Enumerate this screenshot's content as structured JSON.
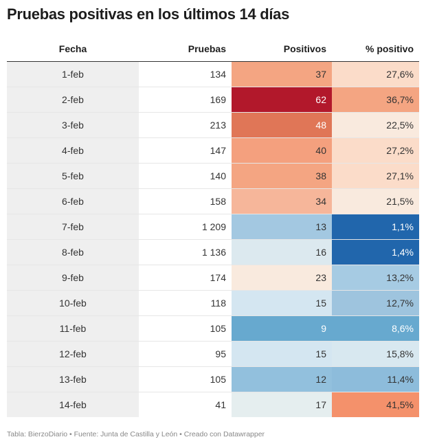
{
  "title": "Pruebas positivas en los últimos 14 días",
  "footer": "Tabla: BierzoDiario • Fuente: Junta de Castilla y León • Creado con Datawrapper",
  "chart_data": {
    "type": "table",
    "columns": [
      "Fecha",
      "Pruebas",
      "Positivos",
      "% positivo"
    ],
    "rows": [
      {
        "fecha": "1-feb",
        "pruebas": "134",
        "positivos": "37",
        "pct": "27,6%",
        "pos_color": "#f4a582",
        "pct_color": "#fbdcc9",
        "pos_text": "#333333",
        "pct_text": "#333333"
      },
      {
        "fecha": "2-feb",
        "pruebas": "169",
        "positivos": "62",
        "pct": "36,7%",
        "pos_color": "#b2182b",
        "pct_color": "#f4a582",
        "pos_text": "#ffffff",
        "pct_text": "#333333"
      },
      {
        "fecha": "3-feb",
        "pruebas": "213",
        "positivos": "48",
        "pct": "22,5%",
        "pos_color": "#e07657",
        "pct_color": "#f9eade",
        "pos_text": "#ffffff",
        "pct_text": "#333333"
      },
      {
        "fecha": "4-feb",
        "pruebas": "147",
        "positivos": "40",
        "pct": "27,2%",
        "pos_color": "#f4a07e",
        "pct_color": "#fbdcc9",
        "pos_text": "#333333",
        "pct_text": "#333333"
      },
      {
        "fecha": "5-feb",
        "pruebas": "140",
        "positivos": "38",
        "pct": "27,1%",
        "pos_color": "#f4a582",
        "pct_color": "#fbdcc9",
        "pos_text": "#333333",
        "pct_text": "#333333"
      },
      {
        "fecha": "6-feb",
        "pruebas": "158",
        "positivos": "34",
        "pct": "21,5%",
        "pos_color": "#f6b69a",
        "pct_color": "#f9eade",
        "pos_text": "#333333",
        "pct_text": "#333333"
      },
      {
        "fecha": "7-feb",
        "pruebas": "1 209",
        "positivos": "13",
        "pct": "1,1%",
        "pos_color": "#a3c8e1",
        "pct_color": "#2166ac",
        "pos_text": "#333333",
        "pct_text": "#ffffff"
      },
      {
        "fecha": "8-feb",
        "pruebas": "1 136",
        "positivos": "16",
        "pct": "1,4%",
        "pos_color": "#dce9ef",
        "pct_color": "#2166ac",
        "pos_text": "#333333",
        "pct_text": "#ffffff"
      },
      {
        "fecha": "9-feb",
        "pruebas": "174",
        "positivos": "23",
        "pct": "13,2%",
        "pos_color": "#f9eade",
        "pct_color": "#a6cbe3",
        "pos_text": "#333333",
        "pct_text": "#333333"
      },
      {
        "fecha": "10-feb",
        "pruebas": "118",
        "positivos": "15",
        "pct": "12,7%",
        "pos_color": "#d4e6f1",
        "pct_color": "#9ec4de",
        "pos_text": "#333333",
        "pct_text": "#333333"
      },
      {
        "fecha": "11-feb",
        "pruebas": "105",
        "positivos": "9",
        "pct": "8,6%",
        "pos_color": "#67a9cf",
        "pct_color": "#67a9cf",
        "pos_text": "#ffffff",
        "pct_text": "#ffffff"
      },
      {
        "fecha": "12-feb",
        "pruebas": "95",
        "positivos": "15",
        "pct": "15,8%",
        "pos_color": "#d4e6f1",
        "pct_color": "#d8e8f0",
        "pos_text": "#333333",
        "pct_text": "#333333"
      },
      {
        "fecha": "13-feb",
        "pruebas": "105",
        "positivos": "12",
        "pct": "11,4%",
        "pos_color": "#92c0dd",
        "pct_color": "#8dbcdb",
        "pos_text": "#333333",
        "pct_text": "#333333"
      },
      {
        "fecha": "14-feb",
        "pruebas": "41",
        "positivos": "17",
        "pct": "41,5%",
        "pos_color": "#e5eeef",
        "pct_color": "#f4916b",
        "pos_text": "#333333",
        "pct_text": "#333333"
      }
    ]
  }
}
